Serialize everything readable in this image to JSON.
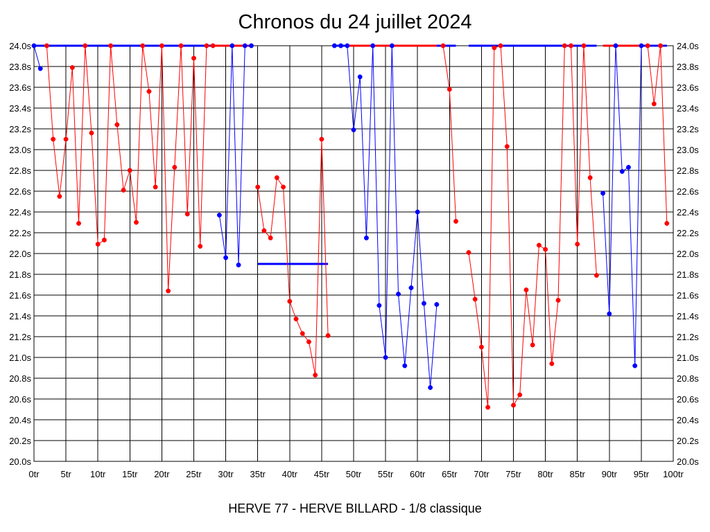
{
  "chart_data": {
    "type": "line",
    "title": "Chronos du 24 juillet 2024",
    "footer": "HERVE 77 - HERVE BILLARD - 1/8 classique",
    "x_ticks": [
      "0tr",
      "5tr",
      "10tr",
      "15tr",
      "20tr",
      "25tr",
      "30tr",
      "35tr",
      "40tr",
      "45tr",
      "50tr",
      "55tr",
      "60tr",
      "65tr",
      "70tr",
      "75tr",
      "80tr",
      "85tr",
      "90tr",
      "95tr",
      "100tr"
    ],
    "y_ticks": [
      "20.0s",
      "20.2s",
      "20.4s",
      "20.6s",
      "20.8s",
      "21.0s",
      "21.2s",
      "21.4s",
      "21.6s",
      "21.8s",
      "22.0s",
      "22.2s",
      "22.4s",
      "22.6s",
      "22.8s",
      "23.0s",
      "23.2s",
      "23.4s",
      "23.6s",
      "23.8s",
      "24.0s"
    ],
    "xlim": [
      0,
      100
    ],
    "ylim": [
      20.0,
      24.0
    ],
    "grid": true,
    "colors": {
      "red": "#ff0000",
      "blue": "#0000ff"
    },
    "series": [
      {
        "color": "red",
        "points": [
          [
            2,
            24.0
          ],
          [
            3,
            23.1
          ],
          [
            4,
            22.55
          ],
          [
            5,
            23.1
          ],
          [
            6,
            23.79
          ],
          [
            7,
            22.29
          ],
          [
            8,
            24.0
          ],
          [
            9,
            23.16
          ],
          [
            10,
            22.09
          ],
          [
            11,
            22.13
          ],
          [
            12,
            24.0
          ],
          [
            13,
            23.24
          ],
          [
            14,
            22.61
          ],
          [
            15,
            22.8
          ],
          [
            16,
            22.3
          ],
          [
            17,
            24.0
          ],
          [
            18,
            23.56
          ],
          [
            19,
            22.64
          ],
          [
            20,
            24.0
          ],
          [
            21,
            21.64
          ],
          [
            22,
            22.83
          ],
          [
            23,
            24.0
          ],
          [
            24,
            22.38
          ],
          [
            25,
            23.88
          ],
          [
            26,
            22.07
          ],
          [
            27,
            24.0
          ],
          [
            28,
            24.0
          ]
        ]
      },
      {
        "color": "blue",
        "points": [
          [
            0,
            24.0
          ],
          [
            1,
            23.78
          ]
        ]
      },
      {
        "color": "blue",
        "points": [
          [
            29,
            22.37
          ],
          [
            30,
            21.96
          ],
          [
            31,
            24.0
          ],
          [
            32,
            21.89
          ],
          [
            33,
            24.0
          ],
          [
            34,
            24.0
          ]
        ]
      },
      {
        "color": "red",
        "points": [
          [
            35,
            22.64
          ],
          [
            36,
            22.22
          ],
          [
            37,
            22.15
          ],
          [
            38,
            22.73
          ],
          [
            39,
            22.64
          ],
          [
            40,
            21.54
          ],
          [
            41,
            21.37
          ],
          [
            42,
            21.23
          ],
          [
            43,
            21.15
          ],
          [
            44,
            20.83
          ],
          [
            45,
            23.1
          ],
          [
            46,
            21.21
          ]
        ]
      },
      {
        "color": "blue",
        "points": [
          [
            47,
            24.0
          ],
          [
            48,
            24.0
          ],
          [
            49,
            24.0
          ],
          [
            50,
            23.19
          ],
          [
            51,
            23.7
          ],
          [
            52,
            22.15
          ],
          [
            53,
            24.0
          ],
          [
            54,
            21.5
          ],
          [
            55,
            21.0
          ],
          [
            56,
            24.0
          ],
          [
            57,
            21.61
          ],
          [
            58,
            20.92
          ],
          [
            59,
            21.67
          ],
          [
            60,
            22.4
          ],
          [
            61,
            21.52
          ],
          [
            62,
            20.71
          ],
          [
            63,
            21.51
          ]
        ]
      },
      {
        "color": "red",
        "points": [
          [
            64,
            24.0
          ],
          [
            65,
            23.58
          ],
          [
            66,
            22.31
          ]
        ]
      },
      {
        "color": "red",
        "points": [
          [
            68,
            22.01
          ],
          [
            69,
            21.56
          ],
          [
            70,
            21.1
          ],
          [
            71,
            20.52
          ],
          [
            72,
            23.98
          ],
          [
            73,
            24.0
          ],
          [
            74,
            23.03
          ],
          [
            75,
            20.54
          ],
          [
            76,
            20.64
          ],
          [
            77,
            21.65
          ],
          [
            78,
            21.12
          ],
          [
            79,
            22.08
          ],
          [
            80,
            22.04
          ],
          [
            81,
            20.94
          ],
          [
            82,
            21.55
          ],
          [
            83,
            24.0
          ],
          [
            84,
            24.0
          ],
          [
            85,
            22.09
          ],
          [
            86,
            24.0
          ],
          [
            87,
            22.73
          ],
          [
            88,
            21.79
          ]
        ]
      },
      {
        "color": "blue",
        "points": [
          [
            89,
            22.58
          ],
          [
            90,
            21.42
          ],
          [
            91,
            24.0
          ],
          [
            92,
            22.79
          ],
          [
            93,
            22.83
          ],
          [
            94,
            20.92
          ],
          [
            95,
            24.0
          ]
        ]
      },
      {
        "color": "red",
        "points": [
          [
            96,
            24.0
          ],
          [
            97,
            23.44
          ],
          [
            98,
            24.0
          ],
          [
            99,
            22.29
          ]
        ]
      }
    ],
    "ref_lines": [
      {
        "color": "blue",
        "x": [
          0,
          28
        ],
        "y": 24.0
      },
      {
        "color": "red",
        "x": [
          28,
          34
        ],
        "y": 24.0
      },
      {
        "color": "blue",
        "x": [
          35,
          46
        ],
        "y": 21.9
      },
      {
        "color": "blue",
        "x": [
          47,
          49
        ],
        "y": 24.0
      },
      {
        "color": "red",
        "x": [
          49,
          63
        ],
        "y": 24.0
      },
      {
        "color": "blue",
        "x": [
          63,
          66
        ],
        "y": 24.0
      },
      {
        "color": "blue",
        "x": [
          68,
          88
        ],
        "y": 24.0
      },
      {
        "color": "red",
        "x": [
          89,
          95
        ],
        "y": 24.0
      },
      {
        "color": "blue",
        "x": [
          95,
          99
        ],
        "y": 24.0
      }
    ]
  }
}
